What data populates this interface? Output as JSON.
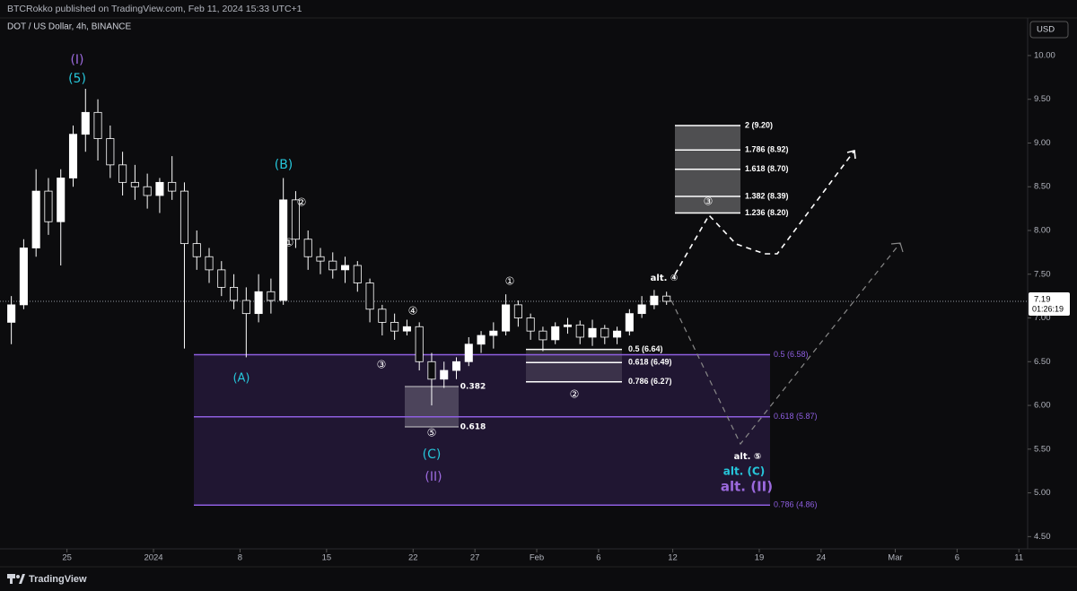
{
  "header": {
    "publisher": "BTCRokko published on TradingView.com, Feb 11, 2024 15:33 UTC+1"
  },
  "chart_data": {
    "type": "candlestick",
    "title": "DOT / US Dollar, 4h, BINANCE",
    "currency": "USD",
    "x": [
      "2023-12-20",
      "2023-12-21",
      "2023-12-22",
      "2023-12-23",
      "2023-12-24",
      "2023-12-25",
      "2023-12-26",
      "2023-12-27",
      "2023-12-28",
      "2023-12-29",
      "2023-12-30",
      "2023-12-31",
      "2024-01-01",
      "2024-01-02",
      "2024-01-03",
      "2024-01-04",
      "2024-01-05",
      "2024-01-06",
      "2024-01-07",
      "2024-01-08",
      "2024-01-09",
      "2024-01-10",
      "2024-01-11",
      "2024-01-12",
      "2024-01-13",
      "2024-01-14",
      "2024-01-15",
      "2024-01-16",
      "2024-01-17",
      "2024-01-18",
      "2024-01-19",
      "2024-01-20",
      "2024-01-21",
      "2024-01-22",
      "2024-01-23",
      "2024-01-24",
      "2024-01-25",
      "2024-01-26",
      "2024-01-27",
      "2024-01-28",
      "2024-01-29",
      "2024-01-30",
      "2024-01-31",
      "2024-02-01",
      "2024-02-02",
      "2024-02-03",
      "2024-02-04",
      "2024-02-05",
      "2024-02-06",
      "2024-02-07",
      "2024-02-08",
      "2024-02-09",
      "2024-02-10",
      "2024-02-11"
    ],
    "open": [
      6.95,
      7.15,
      7.8,
      8.45,
      8.1,
      8.6,
      9.1,
      9.35,
      9.05,
      8.75,
      8.55,
      8.5,
      8.4,
      8.55,
      8.45,
      7.85,
      7.7,
      7.55,
      7.35,
      7.2,
      7.05,
      7.3,
      7.2,
      8.35,
      7.9,
      7.7,
      7.65,
      7.55,
      7.6,
      7.4,
      7.1,
      6.95,
      6.85,
      6.9,
      6.5,
      6.3,
      6.4,
      6.5,
      6.7,
      6.8,
      6.85,
      7.15,
      7.0,
      6.85,
      6.75,
      6.9,
      6.92,
      6.78,
      6.88,
      6.78,
      6.85,
      7.05,
      7.15,
      7.25
    ],
    "high": [
      7.25,
      7.9,
      8.7,
      8.6,
      8.7,
      9.2,
      9.62,
      9.5,
      9.2,
      8.9,
      8.75,
      8.65,
      8.6,
      8.85,
      8.55,
      8.0,
      7.8,
      7.65,
      7.5,
      7.35,
      7.5,
      7.45,
      8.6,
      8.45,
      8.0,
      7.8,
      7.75,
      7.7,
      7.65,
      7.45,
      7.15,
      7.05,
      6.98,
      6.95,
      6.6,
      6.5,
      6.55,
      6.78,
      6.85,
      6.95,
      7.27,
      7.2,
      7.05,
      6.9,
      6.95,
      7.0,
      6.97,
      6.98,
      6.92,
      6.9,
      7.1,
      7.25,
      7.32,
      7.3
    ],
    "low": [
      6.7,
      7.1,
      7.7,
      7.95,
      7.6,
      8.5,
      8.9,
      8.8,
      8.6,
      8.4,
      8.35,
      8.25,
      8.2,
      8.35,
      6.65,
      7.55,
      7.4,
      7.25,
      7.1,
      6.55,
      6.95,
      7.05,
      7.15,
      7.8,
      7.55,
      7.5,
      7.45,
      7.4,
      7.3,
      6.95,
      6.8,
      6.75,
      6.8,
      6.4,
      6.0,
      6.2,
      6.3,
      6.45,
      6.6,
      6.65,
      6.8,
      6.9,
      6.75,
      6.62,
      6.7,
      6.82,
      6.7,
      6.68,
      6.7,
      6.7,
      6.8,
      7.0,
      7.1,
      7.15
    ],
    "close": [
      7.15,
      7.8,
      8.45,
      8.1,
      8.6,
      9.1,
      9.35,
      9.05,
      8.75,
      8.55,
      8.5,
      8.4,
      8.55,
      8.45,
      7.85,
      7.7,
      7.55,
      7.35,
      7.2,
      7.05,
      7.3,
      7.2,
      8.35,
      7.9,
      7.7,
      7.65,
      7.55,
      7.6,
      7.4,
      7.1,
      6.95,
      6.85,
      6.9,
      6.5,
      6.3,
      6.4,
      6.5,
      6.7,
      6.8,
      6.85,
      7.15,
      7.0,
      6.85,
      6.75,
      6.9,
      6.92,
      6.78,
      6.88,
      6.78,
      6.85,
      7.05,
      7.15,
      7.25,
      7.19
    ],
    "up_color": "#ffffff",
    "down_color": "#0c0c0e",
    "wick_color": "#ffffff",
    "xlim": [
      "2023-12-19T14:00:00Z",
      "2024-03-11T17:00:00Z"
    ],
    "xticks": [
      {
        "value": "2023-12-25",
        "label": "25"
      },
      {
        "value": "2024-01-01",
        "label": "2024"
      },
      {
        "value": "2024-01-08",
        "label": "8"
      },
      {
        "value": "2024-01-15",
        "label": "15"
      },
      {
        "value": "2024-01-22",
        "label": "22"
      },
      {
        "value": "2024-01-27",
        "label": "27"
      },
      {
        "value": "2024-02-01",
        "label": "Feb"
      },
      {
        "value": "2024-02-06",
        "label": "6"
      },
      {
        "value": "2024-02-12",
        "label": "12"
      },
      {
        "value": "2024-02-19",
        "label": "19"
      },
      {
        "value": "2024-02-24",
        "label": "24"
      },
      {
        "value": "2024-03-01",
        "label": "Mar"
      },
      {
        "value": "2024-03-06",
        "label": "6"
      },
      {
        "value": "2024-03-11",
        "label": "11"
      }
    ],
    "ylim": [
      4.36,
      10.43
    ],
    "yticks": [
      {
        "value": 10,
        "label": "10.00"
      },
      {
        "value": 9.5,
        "label": "9.50"
      },
      {
        "value": 9,
        "label": "9.00"
      },
      {
        "value": 8.5,
        "label": "8.50"
      },
      {
        "value": 8,
        "label": "8.00"
      },
      {
        "value": 7.5,
        "label": "7.50"
      },
      {
        "value": 7,
        "label": "7.00"
      },
      {
        "value": 6.5,
        "label": "6.50"
      },
      {
        "value": 6,
        "label": "6.00"
      },
      {
        "value": 5.5,
        "label": "5.50"
      },
      {
        "value": 5,
        "label": "5.00"
      },
      {
        "value": 4.5,
        "label": "4.50"
      }
    ],
    "last_price": 7.19,
    "countdown": "01:26:19",
    "target_levels": [
      {
        "value": 9.2,
        "label": "2 (9.20)"
      },
      {
        "value": 8.92,
        "label": "1.786 (8.92)"
      },
      {
        "value": 8.7,
        "label": "1.618 (8.70)"
      },
      {
        "value": 8.39,
        "label": "1.382 (8.39)"
      },
      {
        "value": 8.2,
        "label": "1.236 (8.20)"
      }
    ],
    "retracement_levels": [
      {
        "value": 6.64,
        "label": "0.5 (6.64)"
      },
      {
        "value": 6.49,
        "label": "0.618 (6.49)"
      },
      {
        "value": 6.27,
        "label": "0.786 (6.27)"
      }
    ],
    "wave_levels": [
      {
        "value": 6.58,
        "label": "0.5 (6.58)"
      },
      {
        "value": 5.87,
        "label": "0.618 (5.87)"
      },
      {
        "value": 4.86,
        "label": "0.786 (4.86)"
      }
    ],
    "annotations": [
      "(I)",
      "(5)",
      "(B)",
      "②",
      "①",
      "(A)",
      "③",
      "④",
      "0.382",
      "0.618",
      "⑤",
      "(C)",
      "(II)",
      "①",
      "②",
      "alt. ④",
      "③",
      "alt. ⑤",
      "alt. (C)",
      "alt. (II)"
    ]
  },
  "footer": {
    "brand": "TradingView"
  }
}
